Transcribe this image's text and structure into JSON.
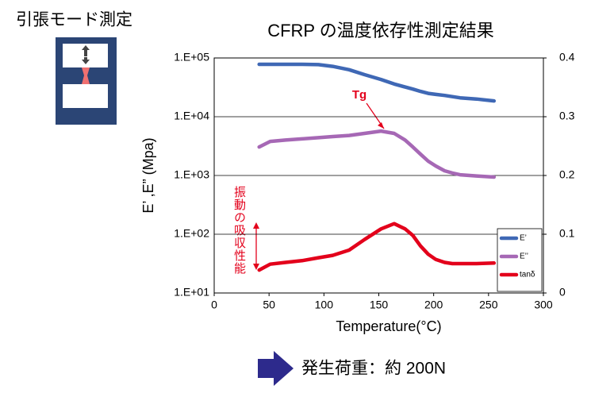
{
  "chart_data": {
    "type": "line",
    "title": "CFRP の温度依存性測定結果",
    "mode_label": "引張モード測定",
    "load_label": "発生荷重：約 200N",
    "tg_label": "Tg",
    "absorption_label": "振動の吸収性能",
    "xlabel": "Temperature(°C)",
    "ylabel": "E’ ,E” (Mpa)",
    "xlim": [
      0,
      300
    ],
    "xticks": [
      0,
      50,
      100,
      150,
      200,
      250,
      300
    ],
    "ylim": [
      10,
      100000
    ],
    "ylog": true,
    "yticks": [
      {
        "value": 10,
        "label": "1.E+01"
      },
      {
        "value": 100,
        "label": "1.E+02"
      },
      {
        "value": 1000,
        "label": "1.E+03"
      },
      {
        "value": 10000,
        "label": "1.E+04"
      },
      {
        "value": 100000,
        "label": "1.E+05"
      }
    ],
    "y2lim": [
      0,
      0.4
    ],
    "y2ticks": [
      0,
      0.1,
      0.2,
      0.3,
      0.4
    ],
    "grid": true,
    "legend": "lower right",
    "x": [
      41,
      51,
      65,
      80,
      95,
      108,
      123,
      137,
      152,
      164,
      174,
      181,
      188,
      195,
      202,
      210,
      217,
      224,
      239,
      255
    ],
    "series": [
      {
        "name": "E’",
        "color": "#3f68b5",
        "values": [
          78000,
          78000,
          78000,
          78000,
          77000,
          72000,
          63000,
          52000,
          43000,
          36000,
          32000,
          29500,
          27000,
          25000,
          24000,
          23000,
          22000,
          21000,
          20000,
          18600
        ]
      },
      {
        "name": "E’’",
        "color": "#a668b5",
        "values": [
          3060,
          3800,
          4000,
          4200,
          4400,
          4600,
          4800,
          5200,
          5700,
          5200,
          4000,
          3060,
          2300,
          1750,
          1450,
          1200,
          1100,
          1030,
          980,
          940
        ]
      },
      {
        "name": "tanδ",
        "color": "#e3001b",
        "axis": "y2",
        "values": [
          0.039,
          0.049,
          0.052,
          0.055,
          0.06,
          0.064,
          0.073,
          0.091,
          0.109,
          0.118,
          0.109,
          0.098,
          0.08,
          0.066,
          0.057,
          0.052,
          0.05,
          0.05,
          0.05,
          0.051
        ]
      }
    ]
  }
}
